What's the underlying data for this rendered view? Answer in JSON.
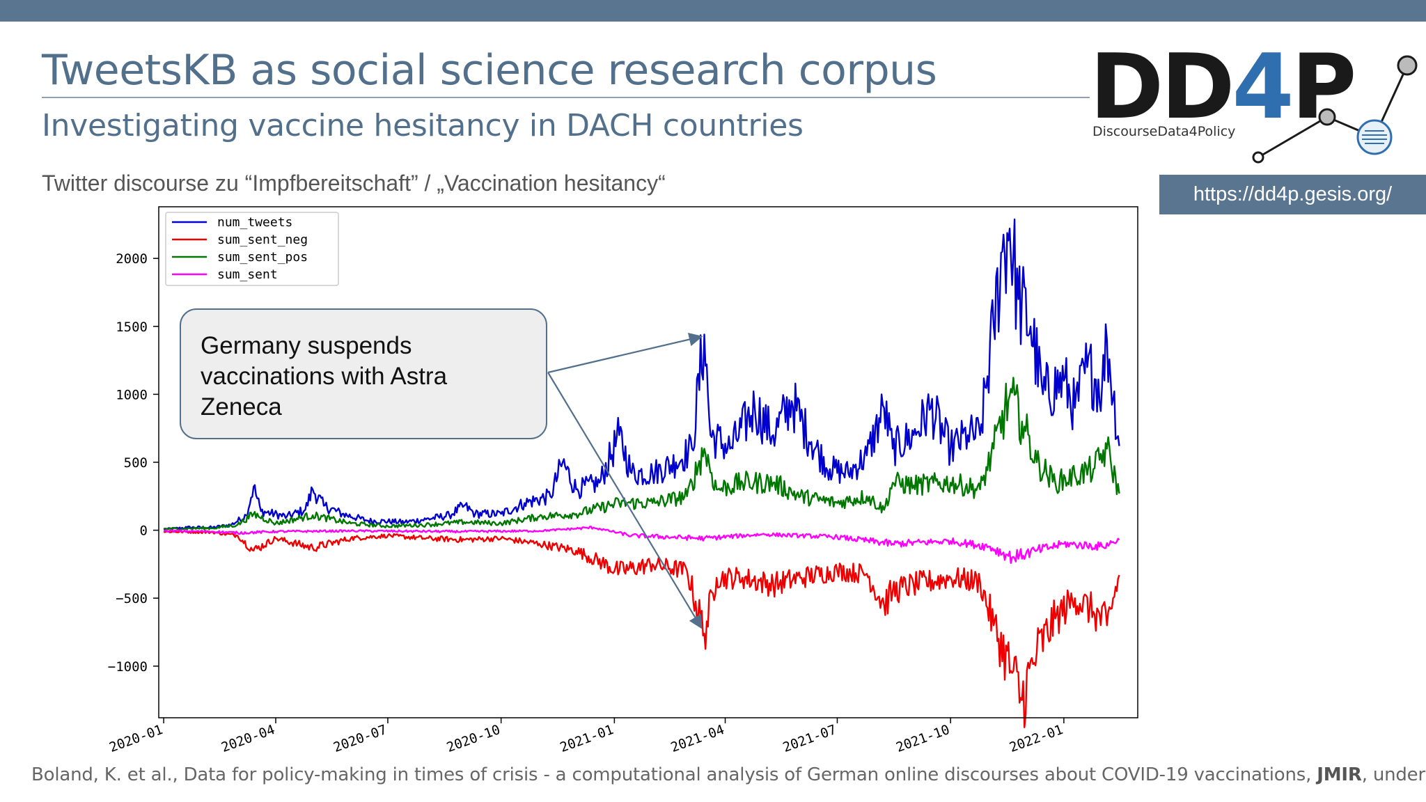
{
  "slide": {
    "title": "TweetsKB as social science research corpus",
    "subtitle": "Investigating vaccine hesitancy in DACH countries",
    "intro": "Twitter discourse zu “Impfbereitschaft” / „Vaccination hesitancy“",
    "url": "https://dd4p.gesis.org/",
    "callout": "Germany suspends vaccinations with Astra Zeneca",
    "citation_before": "Boland, K. et al., Data for policy-making in times of crisis - a computational analysis of German online discourses about COVID-19 vaccinations, ",
    "citation_journal": "JMIR",
    "citation_after": ", under review"
  },
  "logo": {
    "text_dd": "DD",
    "text_4": "4",
    "text_p": "P",
    "tagline": "DiscourseData4Policy",
    "color_dark": "#1a1a1a",
    "color_accent": "#2f6fb0",
    "icon": "network-nodes-icon"
  },
  "colors": {
    "header_bar": "#5a7590",
    "title_text": "#52708c"
  },
  "chart_data": {
    "type": "line",
    "x_type": "date",
    "x_range": [
      "2019-12-28",
      "2022-03-02"
    ],
    "ylim": [
      -1380,
      2380
    ],
    "yticks": [
      -1000,
      -500,
      0,
      500,
      1000,
      1500,
      2000
    ],
    "ytick_labels": [
      "−1000",
      "−500",
      "0",
      "500",
      "1000",
      "1500",
      "2000"
    ],
    "xticks": [
      "2020-01-01",
      "2020-04-01",
      "2020-07-01",
      "2020-10-01",
      "2021-01-01",
      "2021-04-01",
      "2021-07-01",
      "2021-10-01",
      "2022-01-01"
    ],
    "xtick_labels": [
      "2020-01",
      "2020-04",
      "2020-07",
      "2020-10",
      "2021-01",
      "2021-04",
      "2021-07",
      "2021-10",
      "2022-01"
    ],
    "grid": false,
    "legend": "top-left",
    "annotation": {
      "text": "Germany suspends vaccinations with Astra Zeneca",
      "targets": [
        {
          "date": "2021-03-15",
          "value": 1440,
          "series": "num_tweets"
        },
        {
          "date": "2021-03-15",
          "value": -760,
          "series": "sum_sent_neg"
        }
      ]
    },
    "series": [
      {
        "name": "num_tweets",
        "color": "#0000cc",
        "points": [
          [
            "2020-01-01",
            5
          ],
          [
            "2020-01-20",
            20
          ],
          [
            "2020-02-10",
            20
          ],
          [
            "2020-02-25",
            40
          ],
          [
            "2020-03-08",
            110
          ],
          [
            "2020-03-14",
            320
          ],
          [
            "2020-03-20",
            140
          ],
          [
            "2020-04-10",
            100
          ],
          [
            "2020-04-25",
            150
          ],
          [
            "2020-05-01",
            300
          ],
          [
            "2020-05-10",
            180
          ],
          [
            "2020-05-25",
            120
          ],
          [
            "2020-06-15",
            70
          ],
          [
            "2020-07-15",
            60
          ],
          [
            "2020-08-01",
            80
          ],
          [
            "2020-08-20",
            110
          ],
          [
            "2020-09-01",
            180
          ],
          [
            "2020-09-10",
            120
          ],
          [
            "2020-10-01",
            120
          ],
          [
            "2020-10-20",
            200
          ],
          [
            "2020-11-10",
            250
          ],
          [
            "2020-11-20",
            500
          ],
          [
            "2020-12-01",
            300
          ],
          [
            "2020-12-20",
            350
          ],
          [
            "2021-01-05",
            700
          ],
          [
            "2021-01-15",
            420
          ],
          [
            "2021-02-01",
            420
          ],
          [
            "2021-02-20",
            500
          ],
          [
            "2021-03-05",
            600
          ],
          [
            "2021-03-15",
            1440
          ],
          [
            "2021-03-20",
            700
          ],
          [
            "2021-04-05",
            600
          ],
          [
            "2021-04-25",
            900
          ],
          [
            "2021-05-10",
            700
          ],
          [
            "2021-05-25",
            950
          ],
          [
            "2021-06-10",
            650
          ],
          [
            "2021-06-25",
            450
          ],
          [
            "2021-07-10",
            420
          ],
          [
            "2021-07-25",
            550
          ],
          [
            "2021-08-08",
            900
          ],
          [
            "2021-08-15",
            600
          ],
          [
            "2021-09-01",
            700
          ],
          [
            "2021-09-15",
            900
          ],
          [
            "2021-10-01",
            600
          ],
          [
            "2021-10-15",
            700
          ],
          [
            "2021-10-25",
            700
          ],
          [
            "2021-11-05",
            1500
          ],
          [
            "2021-11-12",
            2050
          ],
          [
            "2021-11-18",
            2220
          ],
          [
            "2021-11-25",
            1700
          ],
          [
            "2021-12-05",
            1500
          ],
          [
            "2021-12-15",
            1000
          ],
          [
            "2022-01-01",
            1100
          ],
          [
            "2022-01-10",
            900
          ],
          [
            "2022-01-20",
            1200
          ],
          [
            "2022-02-01",
            1050
          ],
          [
            "2022-02-05",
            1400
          ],
          [
            "2022-02-15",
            620
          ]
        ]
      },
      {
        "name": "sum_sent_neg",
        "color": "#ee0000",
        "points": [
          [
            "2020-01-01",
            -10
          ],
          [
            "2020-02-10",
            -15
          ],
          [
            "2020-03-01",
            -40
          ],
          [
            "2020-03-14",
            -150
          ],
          [
            "2020-04-01",
            -60
          ],
          [
            "2020-05-01",
            -130
          ],
          [
            "2020-06-01",
            -60
          ],
          [
            "2020-07-01",
            -40
          ],
          [
            "2020-08-01",
            -60
          ],
          [
            "2020-09-01",
            -70
          ],
          [
            "2020-10-01",
            -60
          ],
          [
            "2020-11-01",
            -100
          ],
          [
            "2020-12-01",
            -150
          ],
          [
            "2021-01-05",
            -300
          ],
          [
            "2021-02-01",
            -250
          ],
          [
            "2021-03-01",
            -300
          ],
          [
            "2021-03-15",
            -760
          ],
          [
            "2021-03-25",
            -350
          ],
          [
            "2021-04-15",
            -350
          ],
          [
            "2021-05-10",
            -400
          ],
          [
            "2021-06-01",
            -350
          ],
          [
            "2021-07-01",
            -300
          ],
          [
            "2021-07-25",
            -320
          ],
          [
            "2021-08-08",
            -550
          ],
          [
            "2021-08-15",
            -450
          ],
          [
            "2021-09-01",
            -400
          ],
          [
            "2021-10-01",
            -350
          ],
          [
            "2021-10-25",
            -380
          ],
          [
            "2021-11-05",
            -700
          ],
          [
            "2021-11-20",
            -1050
          ],
          [
            "2021-11-28",
            -1250
          ],
          [
            "2021-12-10",
            -900
          ],
          [
            "2021-12-25",
            -650
          ],
          [
            "2022-01-10",
            -500
          ],
          [
            "2022-01-25",
            -600
          ],
          [
            "2022-02-05",
            -700
          ],
          [
            "2022-02-15",
            -330
          ]
        ]
      },
      {
        "name": "sum_sent_pos",
        "color": "#007700",
        "points": [
          [
            "2020-01-01",
            10
          ],
          [
            "2020-02-10",
            15
          ],
          [
            "2020-03-01",
            40
          ],
          [
            "2020-03-14",
            120
          ],
          [
            "2020-04-01",
            50
          ],
          [
            "2020-05-01",
            110
          ],
          [
            "2020-06-01",
            50
          ],
          [
            "2020-07-01",
            30
          ],
          [
            "2020-08-01",
            40
          ],
          [
            "2020-09-01",
            60
          ],
          [
            "2020-10-01",
            50
          ],
          [
            "2020-11-01",
            100
          ],
          [
            "2020-12-01",
            120
          ],
          [
            "2021-01-05",
            200
          ],
          [
            "2021-02-01",
            200
          ],
          [
            "2021-03-01",
            250
          ],
          [
            "2021-03-15",
            600
          ],
          [
            "2021-03-25",
            300
          ],
          [
            "2021-04-15",
            350
          ],
          [
            "2021-05-10",
            350
          ],
          [
            "2021-06-01",
            250
          ],
          [
            "2021-07-01",
            200
          ],
          [
            "2021-07-25",
            250
          ],
          [
            "2021-08-08",
            150
          ],
          [
            "2021-08-15",
            350
          ],
          [
            "2021-09-01",
            330
          ],
          [
            "2021-10-01",
            350
          ],
          [
            "2021-10-25",
            300
          ],
          [
            "2021-11-05",
            600
          ],
          [
            "2021-11-18",
            990
          ],
          [
            "2021-11-28",
            800
          ],
          [
            "2021-12-10",
            500
          ],
          [
            "2021-12-25",
            350
          ],
          [
            "2022-01-10",
            400
          ],
          [
            "2022-01-25",
            450
          ],
          [
            "2022-02-05",
            600
          ],
          [
            "2022-02-15",
            270
          ]
        ]
      },
      {
        "name": "sum_sent",
        "color": "#ff00ff",
        "points": [
          [
            "2020-01-01",
            -5
          ],
          [
            "2020-02-10",
            -10
          ],
          [
            "2020-03-01",
            -20
          ],
          [
            "2020-04-01",
            -10
          ],
          [
            "2020-06-01",
            -5
          ],
          [
            "2020-09-01",
            -10
          ],
          [
            "2020-11-01",
            -5
          ],
          [
            "2020-12-15",
            20
          ],
          [
            "2021-01-15",
            -40
          ],
          [
            "2021-03-15",
            -60
          ],
          [
            "2021-05-01",
            -30
          ],
          [
            "2021-07-01",
            -50
          ],
          [
            "2021-08-15",
            -100
          ],
          [
            "2021-10-01",
            -80
          ],
          [
            "2021-11-01",
            -120
          ],
          [
            "2021-11-20",
            -200
          ],
          [
            "2021-12-10",
            -150
          ],
          [
            "2022-01-01",
            -100
          ],
          [
            "2022-02-01",
            -120
          ],
          [
            "2022-02-15",
            -70
          ]
        ]
      }
    ]
  }
}
